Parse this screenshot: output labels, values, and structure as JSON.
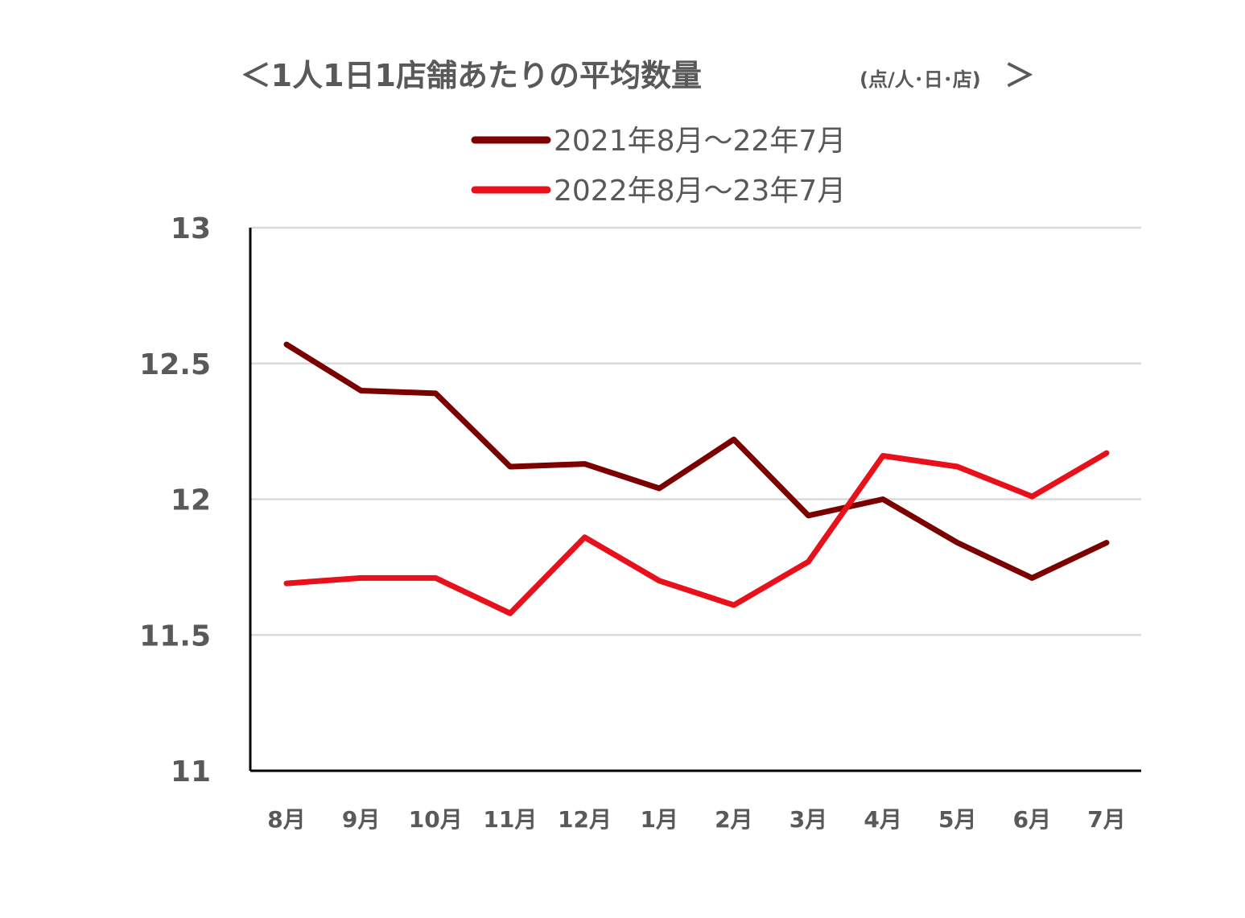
{
  "chart_data": {
    "type": "line",
    "title": "＜1人1日1店舗あたりの平均数量",
    "title_unit": "(点/人･日･店)",
    "title_close": "＞",
    "categories": [
      "8月",
      "9月",
      "10月",
      "11月",
      "12月",
      "1月",
      "2月",
      "3月",
      "4月",
      "5月",
      "6月",
      "7月"
    ],
    "series": [
      {
        "name": "2021年8月～22年7月",
        "color": "#7b0000",
        "values": [
          12.57,
          12.4,
          12.39,
          12.12,
          12.13,
          12.04,
          12.22,
          11.94,
          12.0,
          11.84,
          11.71,
          11.84
        ]
      },
      {
        "name": "2022年8月～23年7月",
        "color": "#e8101a",
        "values": [
          11.69,
          11.71,
          11.71,
          11.58,
          11.86,
          11.7,
          11.61,
          11.77,
          12.16,
          12.12,
          12.01,
          12.17
        ]
      }
    ],
    "yticks": [
      {
        "value": 11,
        "label": "11"
      },
      {
        "value": 11.5,
        "label": "11.5"
      },
      {
        "value": 12,
        "label": "12"
      },
      {
        "value": 12.5,
        "label": "12.5"
      },
      {
        "value": 13,
        "label": "13"
      }
    ],
    "ylim": [
      11,
      13
    ],
    "xlabel": "",
    "ylabel": "",
    "grid": true,
    "legend_position": "top"
  }
}
